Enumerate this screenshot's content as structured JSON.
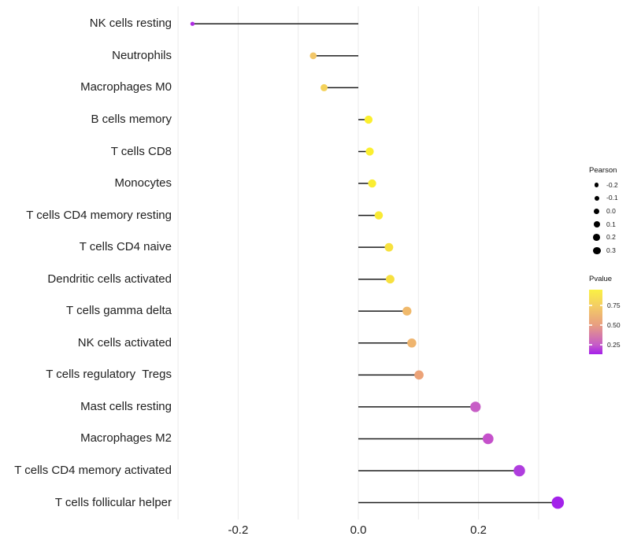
{
  "chart_data": {
    "type": "scatter",
    "style": "lollipop",
    "orientation": "horizontal",
    "title": "",
    "xlabel": "",
    "ylabel": "",
    "categories": [
      "NK cells resting",
      "Neutrophils",
      "Macrophages M0",
      "B cells memory",
      "T cells CD8",
      "Monocytes",
      "T cells CD4 memory resting",
      "T cells CD4 naive",
      "Dendritic cells activated",
      "T cells gamma delta",
      "NK cells activated",
      "T cells regulatory  Tregs",
      "Mast cells resting",
      "Macrophages M2",
      "T cells CD4 memory activated",
      "T cells follicular helper"
    ],
    "series": [
      {
        "name": "Pearson",
        "values": [
          -0.276,
          -0.075,
          -0.057,
          0.017,
          0.019,
          0.023,
          0.034,
          0.051,
          0.053,
          0.081,
          0.089,
          0.101,
          0.195,
          0.216,
          0.268,
          0.332
        ]
      },
      {
        "name": "Pvalue (estimated from color)",
        "values": [
          0.15,
          0.62,
          0.68,
          0.87,
          0.87,
          0.86,
          0.83,
          0.79,
          0.79,
          0.52,
          0.5,
          0.46,
          0.22,
          0.2,
          0.14,
          0.06
        ]
      }
    ],
    "point_colors": [
      "#AE2CE2",
      "#F2C769",
      "#F4D159",
      "#FBEF2F",
      "#FBEF2F",
      "#FAED32",
      "#F9EA35",
      "#F7E13E",
      "#F7E03F",
      "#F0B96B",
      "#EFB56F",
      "#ECA378",
      "#C75EC6",
      "#C551CB",
      "#AF3DDE",
      "#A322EA"
    ],
    "xlim": [
      -0.31,
      0.35
    ],
    "x_ticks": [
      {
        "label": "-0.2",
        "value": -0.2
      },
      {
        "label": "0.0",
        "value": 0.0
      },
      {
        "label": "0.2",
        "value": 0.2
      }
    ],
    "x_gridlines": [
      -0.3,
      -0.2,
      -0.1,
      0.0,
      0.1,
      0.2,
      0.3
    ],
    "size_encoding": "Pearson",
    "color_encoding": "Pvalue",
    "grid": "vertical-only",
    "legend_position": "right",
    "stick_color": "#1c1c1c",
    "gridline_color": "#ebebeb"
  },
  "legend_size": {
    "title": "Pearson",
    "dot_color": "#000000",
    "entries": [
      {
        "label": "-0.2",
        "value": -0.2
      },
      {
        "label": "-0.1",
        "value": -0.1
      },
      {
        "label": "0.0",
        "value": 0.0
      },
      {
        "label": "0.1",
        "value": 0.1
      },
      {
        "label": "0.2",
        "value": 0.2
      },
      {
        "label": "0.3",
        "value": 0.3
      }
    ]
  },
  "legend_color": {
    "title": "Pvalue",
    "range": [
      0.13,
      0.95
    ],
    "ticks": [
      {
        "label": "0.75",
        "value": 0.75
      },
      {
        "label": "0.50",
        "value": 0.5
      },
      {
        "label": "0.25",
        "value": 0.25
      }
    ],
    "gradient_stops": [
      {
        "p": 0.13,
        "color": "#A520EA"
      },
      {
        "p": 0.25,
        "color": "#C55BC8"
      },
      {
        "p": 0.5,
        "color": "#E89E81"
      },
      {
        "p": 0.75,
        "color": "#F4CE63"
      },
      {
        "p": 0.95,
        "color": "#FAF143"
      }
    ]
  }
}
